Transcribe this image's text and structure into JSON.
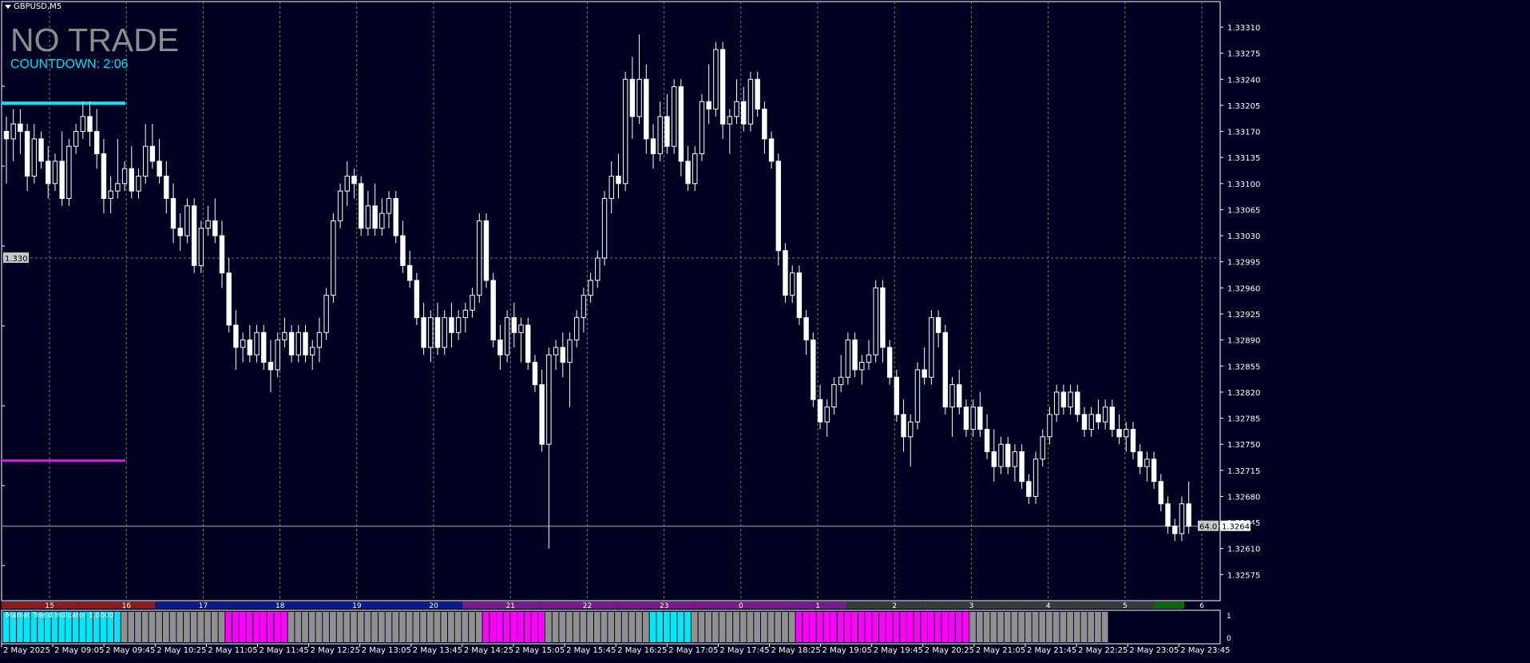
{
  "window": {
    "symbol_title": "GBPUSD,M5"
  },
  "overlay": {
    "signal_text": "NO TRADE",
    "countdown_text": "COUNTDOWN: 2:06"
  },
  "chart_data": {
    "type": "candlestick",
    "symbol": "GBPUSD",
    "timeframe": "M5",
    "ylim": [
      1.3257,
      1.33325
    ],
    "price_ticks": [
      "1.33310",
      "1.33275",
      "1.33240",
      "1.33205",
      "1.33170",
      "1.33135",
      "1.33100",
      "1.33065",
      "1.33030",
      "1.32995",
      "1.32960",
      "1.32925",
      "1.32890",
      "1.32855",
      "1.32820",
      "1.32785",
      "1.32750",
      "1.32715",
      "1.32680",
      "1.32645",
      "1.32610",
      "1.32575"
    ],
    "current_price": 1.3264,
    "current_price_label": "1.32640",
    "current_price_side_label": "64.0",
    "level_line": {
      "value": 1.33,
      "label": "1.330"
    },
    "upper_band": 1.33208,
    "lower_band": 1.32728,
    "time_labels": [
      "2 May 2025",
      "2 May 09:05",
      "2 May 09:45",
      "2 May 10:25",
      "2 May 11:05",
      "2 May 11:45",
      "2 May 12:25",
      "2 May 13:05",
      "2 May 13:45",
      "2 May 14:25",
      "2 May 15:05",
      "2 May 15:45",
      "2 May 16:25",
      "2 May 17:05",
      "2 May 17:45",
      "2 May 18:25",
      "2 May 19:05",
      "2 May 19:45",
      "2 May 20:25",
      "2 May 21:05",
      "2 May 21:45",
      "2 May 22:25",
      "2 May 23:05",
      "2 May 23:45"
    ],
    "hour_segments": [
      {
        "label": "15",
        "color": "#8b1a1a"
      },
      {
        "label": "16",
        "color": "#8b1a1a"
      },
      {
        "label": "17",
        "color": "#0a1a8a"
      },
      {
        "label": "18",
        "color": "#0a1a8a"
      },
      {
        "label": "19",
        "color": "#0a1a8a"
      },
      {
        "label": "20",
        "color": "#0a1a8a"
      },
      {
        "label": "21",
        "color": "#7a1a8a"
      },
      {
        "label": "22",
        "color": "#7a1a8a"
      },
      {
        "label": "23",
        "color": "#7a1a8a"
      },
      {
        "label": "0",
        "color": "#7a1a8a"
      },
      {
        "label": "1",
        "color": "#7a1a8a"
      },
      {
        "label": "2",
        "color": "#3a3a3a"
      },
      {
        "label": "3",
        "color": "#3a3a3a"
      },
      {
        "label": "4",
        "color": "#3a3a3a"
      },
      {
        "label": "5",
        "color": "#3a3a3a"
      },
      {
        "label": "6",
        "color": "#0a6a0a"
      }
    ],
    "candles": [
      [
        1.3317,
        1.3319,
        1.331,
        1.3316
      ],
      [
        1.3316,
        1.332,
        1.3313,
        1.3318
      ],
      [
        1.3318,
        1.332,
        1.3314,
        1.3317
      ],
      [
        1.3317,
        1.3318,
        1.3309,
        1.3311
      ],
      [
        1.3311,
        1.3318,
        1.331,
        1.3316
      ],
      [
        1.3316,
        1.3317,
        1.3312,
        1.3313
      ],
      [
        1.3313,
        1.3315,
        1.3308,
        1.331
      ],
      [
        1.331,
        1.3314,
        1.3309,
        1.3313
      ],
      [
        1.3313,
        1.3317,
        1.3307,
        1.3308
      ],
      [
        1.3308,
        1.3316,
        1.3307,
        1.3315
      ],
      [
        1.3315,
        1.3318,
        1.3314,
        1.3317
      ],
      [
        1.3317,
        1.3321,
        1.3316,
        1.3319
      ],
      [
        1.3319,
        1.3321,
        1.3315,
        1.3317
      ],
      [
        1.3317,
        1.332,
        1.3312,
        1.3314
      ],
      [
        1.3314,
        1.3316,
        1.3306,
        1.3308
      ],
      [
        1.3308,
        1.3311,
        1.3306,
        1.3309
      ],
      [
        1.3309,
        1.3316,
        1.3308,
        1.331
      ],
      [
        1.331,
        1.3313,
        1.3309,
        1.3312
      ],
      [
        1.3312,
        1.3315,
        1.3308,
        1.3309
      ],
      [
        1.3309,
        1.3312,
        1.3308,
        1.3311
      ],
      [
        1.3311,
        1.3318,
        1.331,
        1.3315
      ],
      [
        1.3315,
        1.3318,
        1.3312,
        1.3313
      ],
      [
        1.3313,
        1.3316,
        1.331,
        1.3311
      ],
      [
        1.3311,
        1.3313,
        1.3306,
        1.3308
      ],
      [
        1.3308,
        1.331,
        1.3302,
        1.3304
      ],
      [
        1.3304,
        1.3306,
        1.3301,
        1.3303
      ],
      [
        1.3303,
        1.3308,
        1.3302,
        1.3307
      ],
      [
        1.3307,
        1.3308,
        1.3298,
        1.3299
      ],
      [
        1.3299,
        1.3305,
        1.3298,
        1.3304
      ],
      [
        1.3304,
        1.3307,
        1.3303,
        1.3305
      ],
      [
        1.3305,
        1.3308,
        1.3302,
        1.3303
      ],
      [
        1.3303,
        1.3305,
        1.3296,
        1.3298
      ],
      [
        1.3298,
        1.33,
        1.329,
        1.3291
      ],
      [
        1.3291,
        1.3293,
        1.3285,
        1.3288
      ],
      [
        1.3288,
        1.329,
        1.3286,
        1.3289
      ],
      [
        1.3289,
        1.3291,
        1.3286,
        1.3287
      ],
      [
        1.3287,
        1.3291,
        1.3286,
        1.329
      ],
      [
        1.329,
        1.3291,
        1.3285,
        1.3286
      ],
      [
        1.3286,
        1.3289,
        1.3282,
        1.3285
      ],
      [
        1.3285,
        1.329,
        1.3284,
        1.3289
      ],
      [
        1.3289,
        1.3292,
        1.3288,
        1.329
      ],
      [
        1.329,
        1.3291,
        1.3286,
        1.3287
      ],
      [
        1.3287,
        1.3291,
        1.3286,
        1.329
      ],
      [
        1.329,
        1.3291,
        1.3286,
        1.3287
      ],
      [
        1.3287,
        1.3289,
        1.3285,
        1.3288
      ],
      [
        1.3288,
        1.3292,
        1.3286,
        1.329
      ],
      [
        1.329,
        1.3296,
        1.3289,
        1.3295
      ],
      [
        1.3295,
        1.3306,
        1.3294,
        1.3305
      ],
      [
        1.3305,
        1.331,
        1.3304,
        1.3309
      ],
      [
        1.3309,
        1.3313,
        1.3307,
        1.3311
      ],
      [
        1.3311,
        1.3312,
        1.3308,
        1.331
      ],
      [
        1.331,
        1.3311,
        1.3303,
        1.3304
      ],
      [
        1.3304,
        1.3309,
        1.3303,
        1.3307
      ],
      [
        1.3307,
        1.331,
        1.3303,
        1.3304
      ],
      [
        1.3304,
        1.3308,
        1.3303,
        1.3306
      ],
      [
        1.3306,
        1.3309,
        1.3304,
        1.3308
      ],
      [
        1.3308,
        1.3309,
        1.3302,
        1.3303
      ],
      [
        1.3303,
        1.3305,
        1.3298,
        1.3299
      ],
      [
        1.3299,
        1.3301,
        1.3296,
        1.3297
      ],
      [
        1.3297,
        1.3298,
        1.3291,
        1.3292
      ],
      [
        1.3292,
        1.3294,
        1.3287,
        1.3288
      ],
      [
        1.3288,
        1.3293,
        1.3286,
        1.3292
      ],
      [
        1.3292,
        1.3294,
        1.3287,
        1.3288
      ],
      [
        1.3288,
        1.3293,
        1.3287,
        1.3292
      ],
      [
        1.3292,
        1.3294,
        1.3288,
        1.329
      ],
      [
        1.329,
        1.3293,
        1.3289,
        1.3292
      ],
      [
        1.3292,
        1.3294,
        1.329,
        1.3293
      ],
      [
        1.3293,
        1.3296,
        1.3292,
        1.3295
      ],
      [
        1.3295,
        1.3306,
        1.3294,
        1.3305
      ],
      [
        1.3305,
        1.3306,
        1.3296,
        1.3297
      ],
      [
        1.3297,
        1.3298,
        1.3288,
        1.3289
      ],
      [
        1.3289,
        1.3291,
        1.3285,
        1.3287
      ],
      [
        1.3287,
        1.3293,
        1.3286,
        1.3292
      ],
      [
        1.3292,
        1.3294,
        1.3288,
        1.329
      ],
      [
        1.329,
        1.3292,
        1.3286,
        1.3291
      ],
      [
        1.3291,
        1.3292,
        1.3285,
        1.3286
      ],
      [
        1.3286,
        1.3287,
        1.3282,
        1.3283
      ],
      [
        1.3283,
        1.3285,
        1.3274,
        1.3275
      ],
      [
        1.3275,
        1.3288,
        1.3261,
        1.3287
      ],
      [
        1.3287,
        1.3289,
        1.3285,
        1.3288
      ],
      [
        1.3288,
        1.329,
        1.3284,
        1.3286
      ],
      [
        1.3286,
        1.329,
        1.328,
        1.3289
      ],
      [
        1.3289,
        1.3293,
        1.3288,
        1.3292
      ],
      [
        1.3292,
        1.3296,
        1.329,
        1.3295
      ],
      [
        1.3295,
        1.3298,
        1.3294,
        1.3297
      ],
      [
        1.3297,
        1.3301,
        1.3296,
        1.33
      ],
      [
        1.33,
        1.3309,
        1.3299,
        1.3308
      ],
      [
        1.3308,
        1.3313,
        1.3306,
        1.3311
      ],
      [
        1.3311,
        1.3314,
        1.3308,
        1.331
      ],
      [
        1.331,
        1.3325,
        1.3309,
        1.3324
      ],
      [
        1.3324,
        1.3327,
        1.3316,
        1.3319
      ],
      [
        1.3319,
        1.333,
        1.3318,
        1.3324
      ],
      [
        1.3324,
        1.3326,
        1.3314,
        1.3316
      ],
      [
        1.3316,
        1.3318,
        1.3312,
        1.3314
      ],
      [
        1.3314,
        1.3321,
        1.3313,
        1.3319
      ],
      [
        1.3319,
        1.3322,
        1.3314,
        1.3315
      ],
      [
        1.3315,
        1.3324,
        1.3314,
        1.3323
      ],
      [
        1.3323,
        1.3324,
        1.3311,
        1.3313
      ],
      [
        1.3313,
        1.3315,
        1.3309,
        1.331
      ],
      [
        1.331,
        1.3315,
        1.3309,
        1.3314
      ],
      [
        1.3314,
        1.3322,
        1.3313,
        1.3321
      ],
      [
        1.3321,
        1.3326,
        1.3318,
        1.332
      ],
      [
        1.332,
        1.3329,
        1.3319,
        1.3328
      ],
      [
        1.3328,
        1.3329,
        1.3316,
        1.3318
      ],
      [
        1.3318,
        1.332,
        1.3314,
        1.3319
      ],
      [
        1.3319,
        1.3324,
        1.3318,
        1.3321
      ],
      [
        1.3321,
        1.3323,
        1.3317,
        1.3318
      ],
      [
        1.3318,
        1.3325,
        1.3317,
        1.3324
      ],
      [
        1.3324,
        1.3325,
        1.3319,
        1.332
      ],
      [
        1.332,
        1.3321,
        1.3314,
        1.3316
      ],
      [
        1.3316,
        1.3317,
        1.3312,
        1.3313
      ],
      [
        1.3313,
        1.3314,
        1.3299,
        1.3301
      ],
      [
        1.3301,
        1.3302,
        1.3294,
        1.3295
      ],
      [
        1.3295,
        1.3299,
        1.3294,
        1.3298
      ],
      [
        1.3298,
        1.3299,
        1.3291,
        1.3292
      ],
      [
        1.3292,
        1.3293,
        1.3287,
        1.3289
      ],
      [
        1.3289,
        1.329,
        1.328,
        1.3281
      ],
      [
        1.3281,
        1.3283,
        1.3277,
        1.3278
      ],
      [
        1.3278,
        1.3281,
        1.3276,
        1.328
      ],
      [
        1.328,
        1.3284,
        1.3279,
        1.3283
      ],
      [
        1.3283,
        1.3287,
        1.3282,
        1.3284
      ],
      [
        1.3284,
        1.329,
        1.3283,
        1.3289
      ],
      [
        1.3289,
        1.329,
        1.3284,
        1.3285
      ],
      [
        1.3285,
        1.3287,
        1.3283,
        1.3286
      ],
      [
        1.3286,
        1.3289,
        1.3285,
        1.3287
      ],
      [
        1.3287,
        1.3297,
        1.3286,
        1.3296
      ],
      [
        1.3296,
        1.3297,
        1.3286,
        1.3288
      ],
      [
        1.3288,
        1.3289,
        1.3283,
        1.3284
      ],
      [
        1.3284,
        1.3285,
        1.3278,
        1.3279
      ],
      [
        1.3279,
        1.3281,
        1.3274,
        1.3276
      ],
      [
        1.3276,
        1.3279,
        1.3272,
        1.3278
      ],
      [
        1.3278,
        1.3286,
        1.3277,
        1.3285
      ],
      [
        1.3285,
        1.3288,
        1.3283,
        1.3284
      ],
      [
        1.3284,
        1.3293,
        1.3283,
        1.3292
      ],
      [
        1.3292,
        1.3293,
        1.3288,
        1.329
      ],
      [
        1.329,
        1.3291,
        1.3279,
        1.328
      ],
      [
        1.328,
        1.3284,
        1.3276,
        1.3283
      ],
      [
        1.3283,
        1.3285,
        1.3279,
        1.328
      ],
      [
        1.328,
        1.3281,
        1.3276,
        1.3277
      ],
      [
        1.3277,
        1.3281,
        1.3276,
        1.328
      ],
      [
        1.328,
        1.3282,
        1.3276,
        1.3277
      ],
      [
        1.3277,
        1.3279,
        1.3273,
        1.3274
      ],
      [
        1.3274,
        1.3277,
        1.327,
        1.3272
      ],
      [
        1.3272,
        1.3276,
        1.3271,
        1.3275
      ],
      [
        1.3275,
        1.3276,
        1.3271,
        1.3272
      ],
      [
        1.3272,
        1.3275,
        1.327,
        1.3274
      ],
      [
        1.3274,
        1.3275,
        1.3269,
        1.327
      ],
      [
        1.327,
        1.3271,
        1.3267,
        1.3268
      ],
      [
        1.3268,
        1.3274,
        1.3267,
        1.3273
      ],
      [
        1.3273,
        1.3277,
        1.3272,
        1.3276
      ],
      [
        1.3276,
        1.328,
        1.3275,
        1.3279
      ],
      [
        1.3279,
        1.3283,
        1.3278,
        1.3282
      ],
      [
        1.3282,
        1.3283,
        1.3279,
        1.328
      ],
      [
        1.328,
        1.3283,
        1.3279,
        1.3282
      ],
      [
        1.3282,
        1.3283,
        1.3278,
        1.3279
      ],
      [
        1.3279,
        1.328,
        1.3276,
        1.3277
      ],
      [
        1.3277,
        1.328,
        1.3276,
        1.3279
      ],
      [
        1.3279,
        1.3281,
        1.3277,
        1.3278
      ],
      [
        1.3278,
        1.3281,
        1.3277,
        1.328
      ],
      [
        1.328,
        1.3281,
        1.3276,
        1.3277
      ],
      [
        1.3277,
        1.3279,
        1.3275,
        1.3276
      ],
      [
        1.3276,
        1.3278,
        1.3274,
        1.3277
      ],
      [
        1.3277,
        1.3278,
        1.3273,
        1.3274
      ],
      [
        1.3274,
        1.3275,
        1.3271,
        1.3272
      ],
      [
        1.3272,
        1.3274,
        1.327,
        1.3273
      ],
      [
        1.3273,
        1.3274,
        1.3269,
        1.327
      ],
      [
        1.327,
        1.3271,
        1.3266,
        1.3267
      ],
      [
        1.3267,
        1.3268,
        1.3263,
        1.3264
      ],
      [
        1.3264,
        1.3265,
        1.3262,
        1.3263
      ],
      [
        1.3263,
        1.3268,
        1.3262,
        1.3267
      ],
      [
        1.3267,
        1.327,
        1.3263,
        1.3264
      ]
    ],
    "indicator": {
      "name": "Market Trend Indicator 1.0000",
      "scale_labels": [
        "1",
        "0"
      ],
      "segments": [
        {
          "count": 17,
          "state": "up",
          "color": "#00e8f8"
        },
        {
          "count": 15,
          "state": "neutral",
          "color": "#909090"
        },
        {
          "count": 9,
          "state": "down",
          "color": "#ff00ff"
        },
        {
          "count": 28,
          "state": "neutral",
          "color": "#909090"
        },
        {
          "count": 9,
          "state": "down",
          "color": "#ff00ff"
        },
        {
          "count": 15,
          "state": "neutral",
          "color": "#909090"
        },
        {
          "count": 6,
          "state": "up",
          "color": "#00e8f8"
        },
        {
          "count": 15,
          "state": "neutral",
          "color": "#909090"
        },
        {
          "count": 25,
          "state": "down",
          "color": "#ff00ff"
        },
        {
          "count": 20,
          "state": "neutral",
          "color": "#909090"
        }
      ]
    }
  },
  "colors": {
    "background": "#000020",
    "candle": "#ffffff",
    "grid": "#7a7a7a",
    "upper_band": "#00e8f8",
    "lower_band": "#ff00ff",
    "axis_text": "#ffffff"
  }
}
